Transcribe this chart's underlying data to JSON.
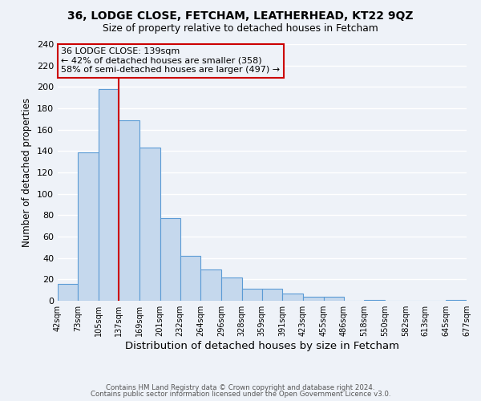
{
  "title1": "36, LODGE CLOSE, FETCHAM, LEATHERHEAD, KT22 9QZ",
  "title2": "Size of property relative to detached houses in Fetcham",
  "xlabel": "Distribution of detached houses by size in Fetcham",
  "ylabel": "Number of detached properties",
  "bar_edges": [
    42,
    73,
    105,
    137,
    169,
    201,
    232,
    264,
    296,
    328,
    359,
    391,
    423,
    455,
    486,
    518,
    550,
    582,
    613,
    645,
    677
  ],
  "bar_heights": [
    16,
    139,
    198,
    169,
    143,
    77,
    42,
    29,
    22,
    11,
    11,
    7,
    4,
    4,
    0,
    1,
    0,
    0,
    0,
    1
  ],
  "bar_color": "#c5d8ed",
  "bar_edge_color": "#5b9bd5",
  "vline_x": 137,
  "vline_color": "#cc0000",
  "annotation_title": "36 LODGE CLOSE: 139sqm",
  "annotation_line1": "← 42% of detached houses are smaller (358)",
  "annotation_line2": "58% of semi-detached houses are larger (497) →",
  "annotation_box_color": "#cc0000",
  "ylim": [
    0,
    240
  ],
  "yticks": [
    0,
    20,
    40,
    60,
    80,
    100,
    120,
    140,
    160,
    180,
    200,
    220,
    240
  ],
  "xtick_labels": [
    "42sqm",
    "73sqm",
    "105sqm",
    "137sqm",
    "169sqm",
    "201sqm",
    "232sqm",
    "264sqm",
    "296sqm",
    "328sqm",
    "359sqm",
    "391sqm",
    "423sqm",
    "455sqm",
    "486sqm",
    "518sqm",
    "550sqm",
    "582sqm",
    "613sqm",
    "645sqm",
    "677sqm"
  ],
  "footnote1": "Contains HM Land Registry data © Crown copyright and database right 2024.",
  "footnote2": "Contains public sector information licensed under the Open Government Licence v3.0.",
  "bg_color": "#eef2f8",
  "grid_color": "#ffffff"
}
